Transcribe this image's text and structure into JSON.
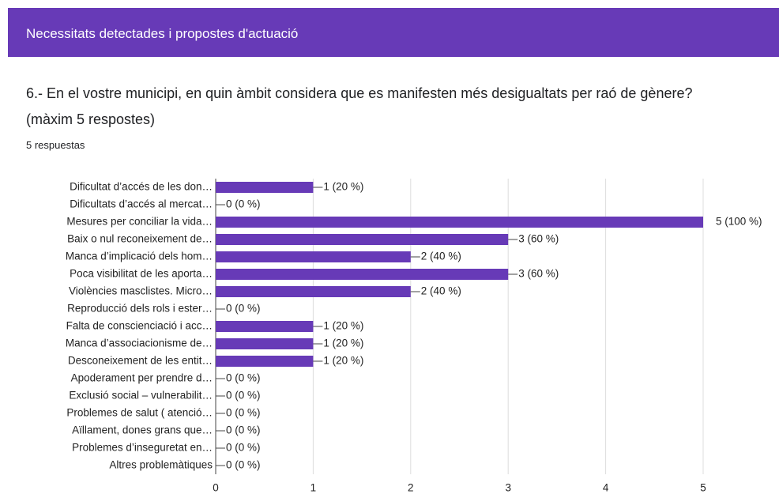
{
  "section_title": "Necessitats detectades i propostes d'actuació",
  "question": "6.- En el vostre municipi, en quin àmbit considera que es manifesten més desigualtats per raó de gènere? (màxim 5 respostes)",
  "response_count": "5 respuestas",
  "chart_data": {
    "type": "bar",
    "orientation": "horizontal",
    "color": "#673ab7",
    "grid": true,
    "categories": [
      "Dificultat d’accés de les don…",
      "Dificultats d’accés al mercat…",
      "Mesures per conciliar la vida…",
      "Baix o nul reconeixement de…",
      "Manca d’implicació dels hom…",
      "Poca visibilitat de les aporta…",
      "Violències masclistes. Micro…",
      "Reproducció dels rols i ester…",
      "Falta de conscienciació i acc…",
      "Manca d’associacionisme de…",
      "Desconeixement de les entit…",
      "Apoderament per prendre d…",
      "Exclusió social – vulnerabilit…",
      "Problemes de salut ( atenció…",
      "Aïllament, dones grans que…",
      "Problemes d’inseguretat en…",
      "Altres problemàtiques"
    ],
    "values": [
      1,
      0,
      5,
      3,
      2,
      3,
      2,
      0,
      1,
      1,
      1,
      0,
      0,
      0,
      0,
      0,
      0
    ],
    "value_labels": [
      "1 (20 %)",
      "0 (0 %)",
      "5 (100 %)",
      "3 (60 %)",
      "2 (40 %)",
      "3 (60 %)",
      "2 (40 %)",
      "0 (0 %)",
      "1 (20 %)",
      "1 (20 %)",
      "1 (20 %)",
      "0 (0 %)",
      "0 (0 %)",
      "0 (0 %)",
      "0 (0 %)",
      "0 (0 %)",
      "0 (0 %)"
    ],
    "xlim": [
      0,
      5
    ],
    "xticks": [
      0,
      1,
      2,
      3,
      4,
      5
    ]
  }
}
